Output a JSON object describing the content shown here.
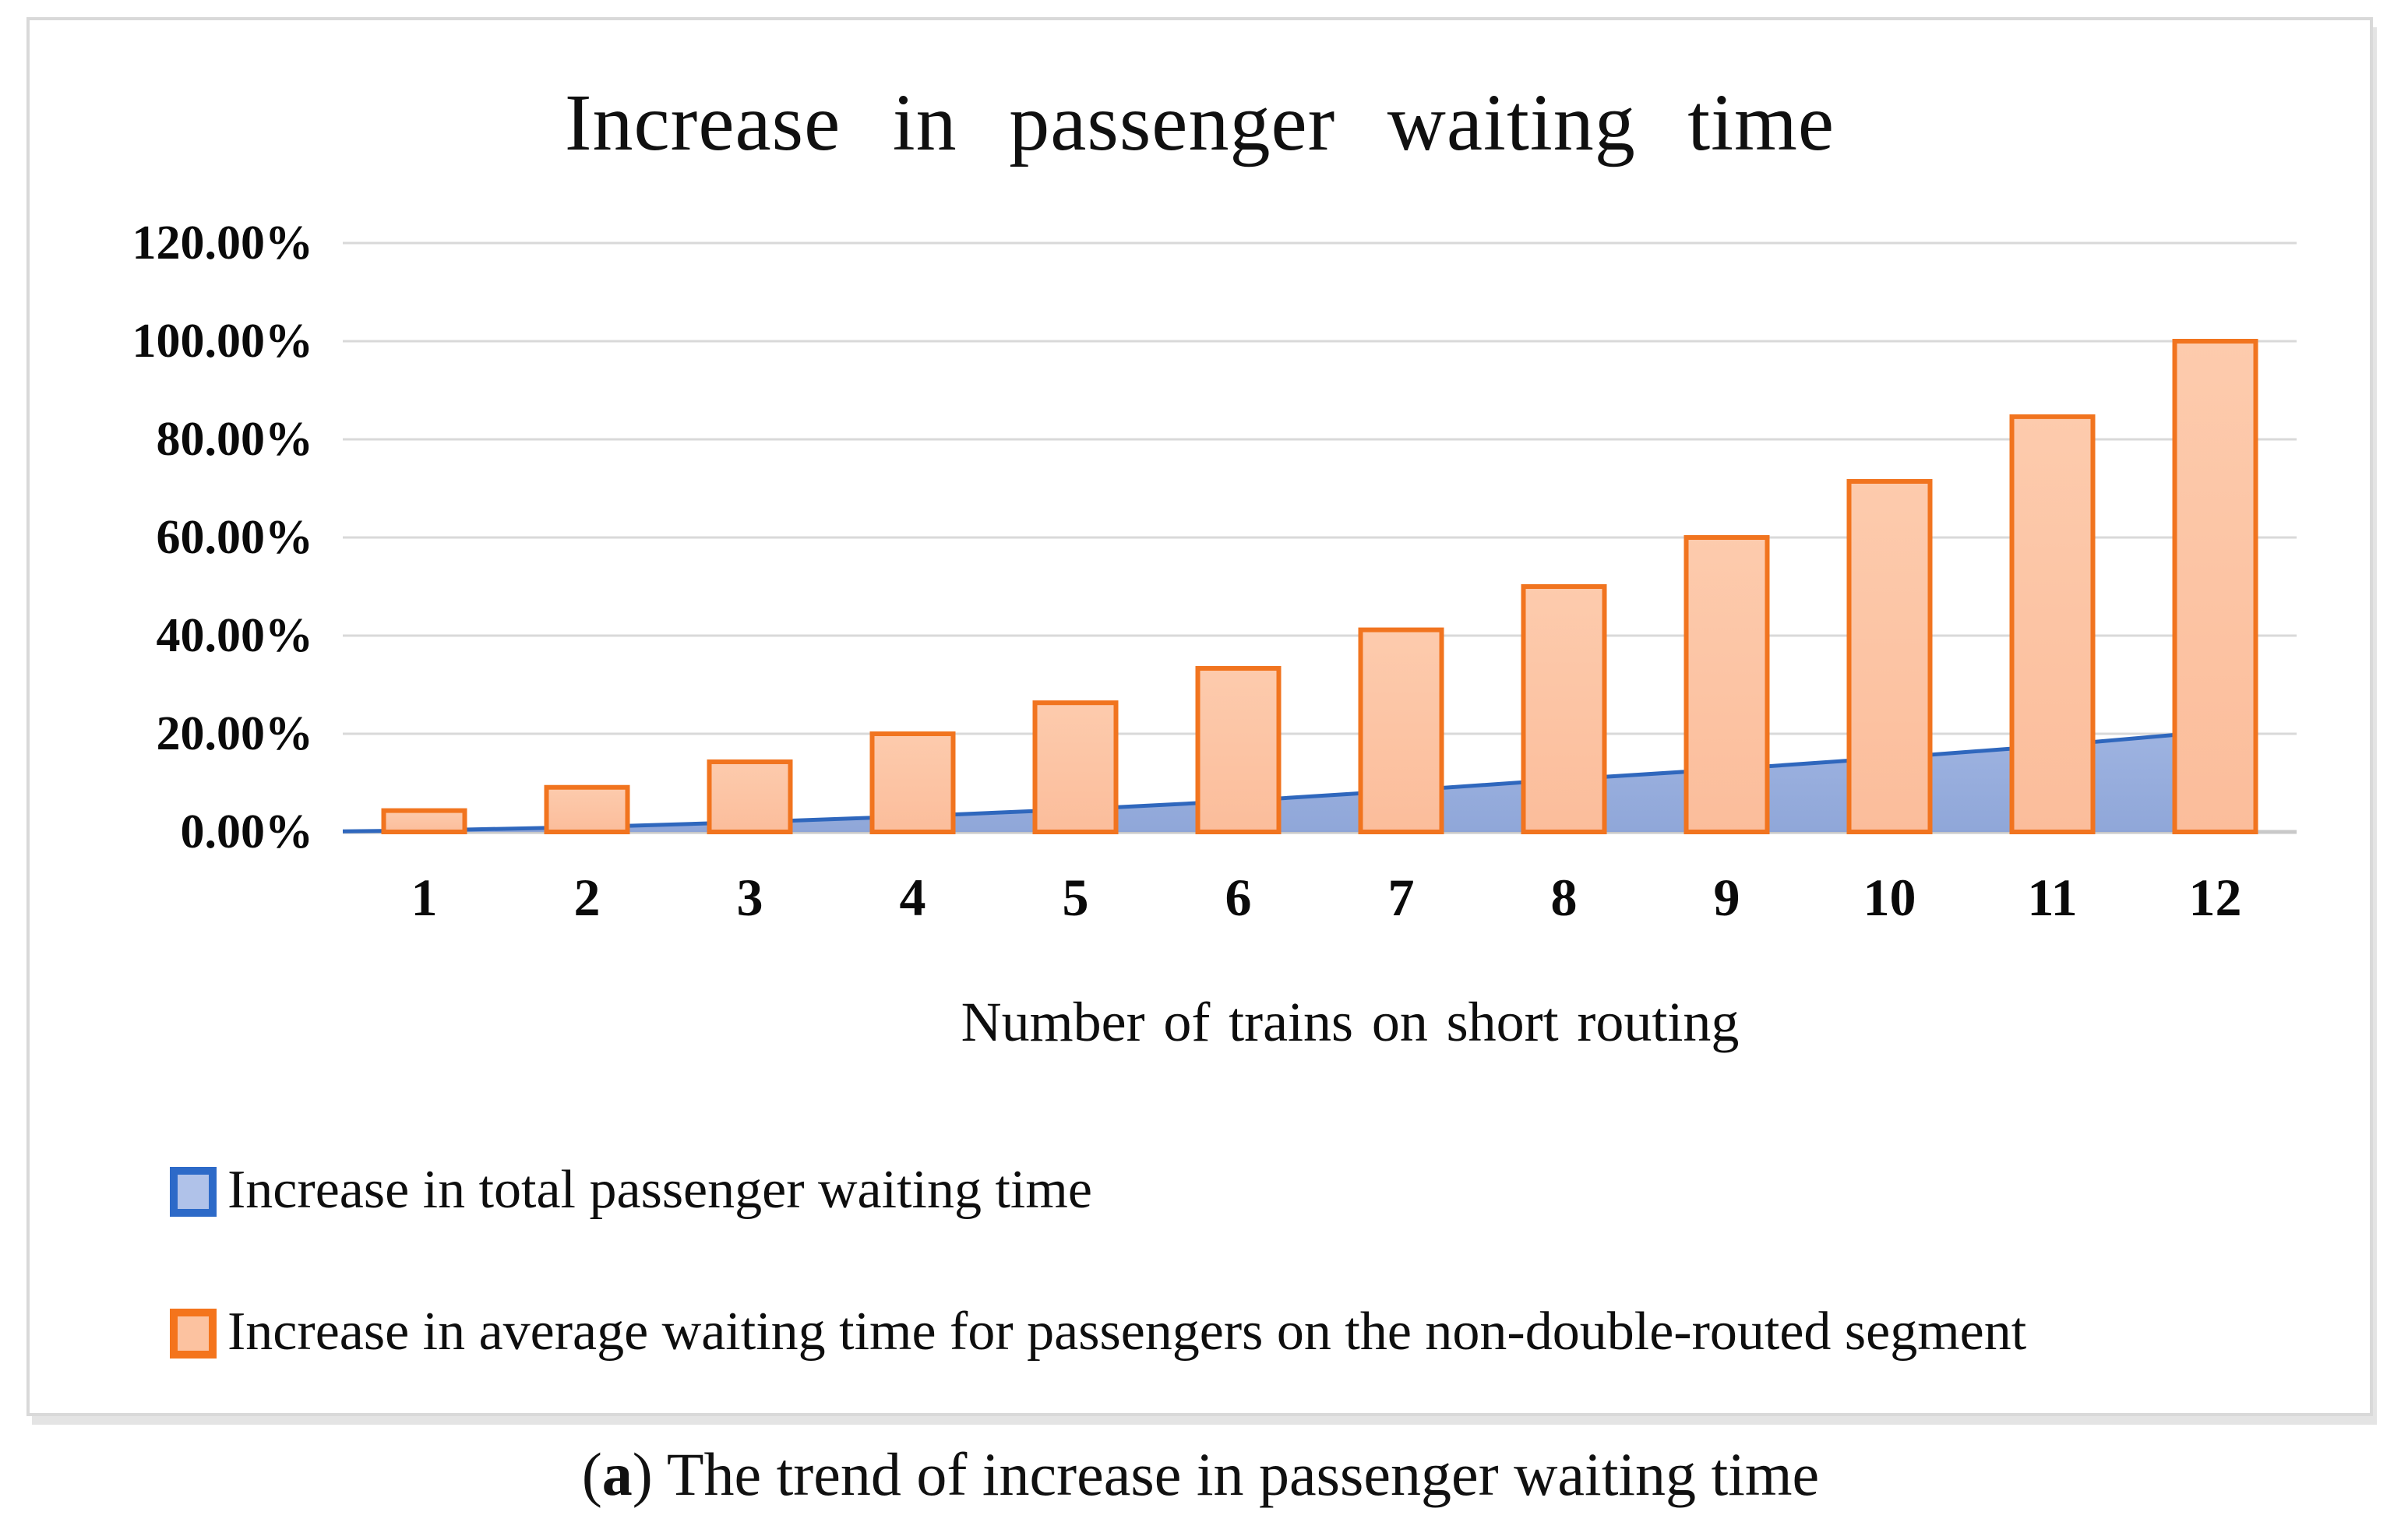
{
  "figure": {
    "caption": {
      "marker": "a",
      "text": " The trend of increase in passenger waiting time"
    }
  },
  "chart_data": {
    "type": "bar",
    "subtype": "bar-with-area-overlay",
    "title": "Increase in passenger waiting time",
    "xlabel": "Number of trains on short routing",
    "ylabel": "",
    "categories": [
      "1",
      "2",
      "3",
      "4",
      "5",
      "6",
      "7",
      "8",
      "9",
      "10",
      "11",
      "12"
    ],
    "series": [
      {
        "name": "Increase in total passenger waiting time",
        "type": "area",
        "values_pct": [
          0.3,
          1.0,
          2.0,
          3.2,
          4.6,
          6.3,
          8.4,
          10.7,
          12.8,
          15.1,
          17.6,
          20.5
        ],
        "right_edge_value_pct": 21.4,
        "fill_color": "#8BA3D7",
        "fill_color_top": "#9BB1E0",
        "line_color": "#2F67BD",
        "legend_swatch_fill": "#B0C2E9",
        "legend_swatch_border": "#2D6AC8"
      },
      {
        "name": "Increase in average waiting time for passengers on the non-double-routed segment",
        "type": "bar",
        "values_pct": [
          4.35,
          9.09,
          14.29,
          20.0,
          26.32,
          33.33,
          41.18,
          50.0,
          60.0,
          71.43,
          84.62,
          100.0
        ],
        "fill_color": "#FBBD9B",
        "fill_color_top": "#FDCBAD",
        "border_color": "#F1741F",
        "legend_swatch_fill": "#FCC2A0",
        "legend_swatch_border": "#F4741C"
      }
    ],
    "y_axis": {
      "min": 0,
      "max": 120,
      "step": 20,
      "tick_labels": [
        "0.00%",
        "20.00%",
        "40.00%",
        "60.00%",
        "80.00%",
        "100.00%",
        "120.00%"
      ],
      "grid": true,
      "grid_color": "#D9D9D9",
      "axis_line_color": "#C9C9C9"
    },
    "legend_position": "bottom-left"
  }
}
